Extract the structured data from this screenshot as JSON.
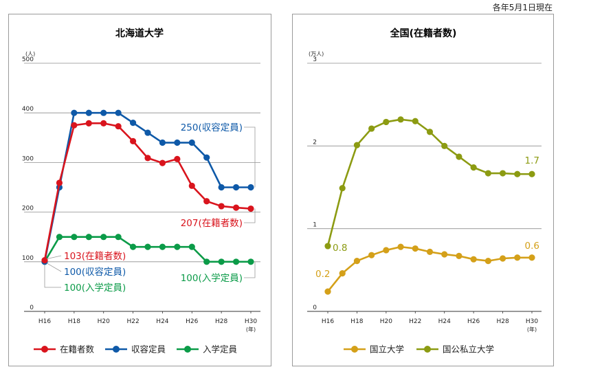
{
  "note": "各年5月1日現在",
  "chart_data": [
    {
      "type": "line",
      "title": "北海道大学",
      "ylabel": "(人)",
      "xlabel": "(年)",
      "categories": [
        "H16",
        "H17",
        "H18",
        "H19",
        "H20",
        "H21",
        "H22",
        "H23",
        "H24",
        "H25",
        "H26",
        "H27",
        "H28",
        "H29",
        "H30"
      ],
      "xticks": [
        "H16",
        "H18",
        "H20",
        "H22",
        "H24",
        "H26",
        "H28",
        "H30"
      ],
      "ylim": [
        0,
        500
      ],
      "yticks": [
        "0",
        "100",
        "200",
        "300",
        "400",
        "500"
      ],
      "grid": true,
      "legend": "bottom",
      "series": [
        {
          "name": "在籍者数",
          "color": "#d9141d",
          "values": [
            103,
            259,
            375,
            379,
            379,
            373,
            343,
            309,
            299,
            307,
            253,
            222,
            212,
            209,
            207
          ]
        },
        {
          "name": "収容定員",
          "color": "#0e59a8",
          "values": [
            100,
            250,
            400,
            400,
            400,
            400,
            380,
            360,
            340,
            340,
            340,
            310,
            250,
            250,
            250
          ]
        },
        {
          "name": "入学定員",
          "color": "#0b9b48",
          "values": [
            100,
            150,
            150,
            150,
            150,
            150,
            130,
            130,
            130,
            130,
            130,
            100,
            100,
            100,
            100
          ]
        }
      ],
      "annotations": {
        "end_cap": "250(収容定員)",
        "end_zaiseki": "207(在籍者数)",
        "end_nyugaku": "100(入学定員)",
        "start_zaiseki": "103(在籍者数)",
        "start_cap": "100(収容定員)",
        "start_nyugaku": "100(入学定員)"
      }
    },
    {
      "type": "line",
      "title": "全国(在籍者数)",
      "ylabel": "(万人)",
      "xlabel": "(年)",
      "categories": [
        "H16",
        "H17",
        "H18",
        "H19",
        "H20",
        "H21",
        "H22",
        "H23",
        "H24",
        "H25",
        "H26",
        "H27",
        "H28",
        "H29",
        "H30"
      ],
      "xticks": [
        "H16",
        "H18",
        "H20",
        "H22",
        "H24",
        "H26",
        "H28",
        "H30"
      ],
      "ylim": [
        0,
        3
      ],
      "yticks": [
        "0",
        "1",
        "2",
        "3"
      ],
      "grid": true,
      "legend": "bottom",
      "series": [
        {
          "name": "国立大学",
          "color": "#d4a019",
          "values": [
            0.24,
            0.46,
            0.61,
            0.68,
            0.74,
            0.78,
            0.76,
            0.72,
            0.69,
            0.67,
            0.63,
            0.61,
            0.64,
            0.65,
            0.65
          ]
        },
        {
          "name": "国公私立大学",
          "color": "#8c9b12",
          "values": [
            0.79,
            1.49,
            2.01,
            2.21,
            2.29,
            2.32,
            2.3,
            2.17,
            2.0,
            1.87,
            1.74,
            1.67,
            1.67,
            1.66,
            1.66
          ]
        }
      ],
      "annotations": {
        "start_kokuritsu": "0.2",
        "start_all": "0.8",
        "end_kokuritsu": "0.6",
        "end_all": "1.7"
      }
    }
  ]
}
